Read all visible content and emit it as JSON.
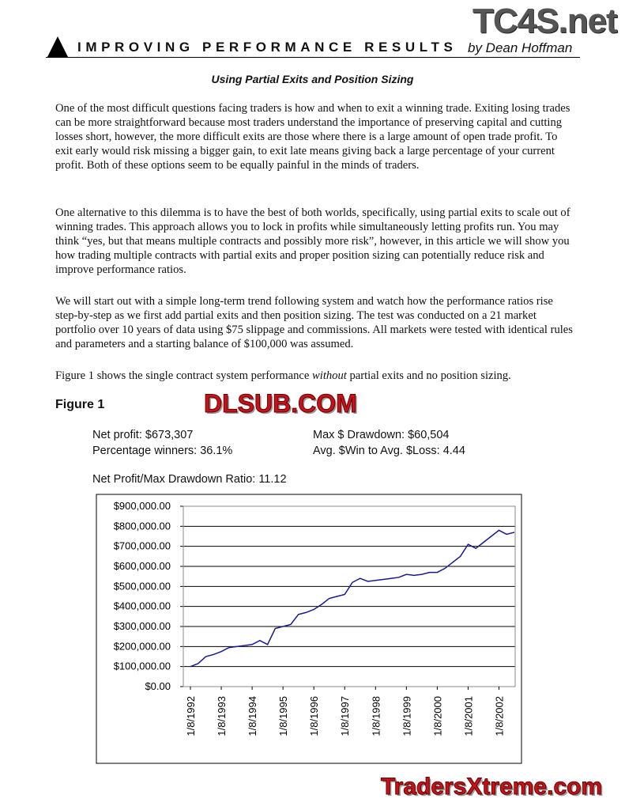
{
  "header": {
    "title": "IMPROVING PERFORMANCE RESULTS",
    "byline": "by Dean Hoffman",
    "logo": "TC4S.net"
  },
  "article": {
    "subtitle": "Using Partial Exits and Position Sizing",
    "paragraphs": [
      [
        "One of the most difficult questions facing traders is how and when to exit a winning trade. Exiting losing trades can be more straightforward because most traders understand the importance of preserving capital and cutting losses short, however, the more difficult exits are those where there is a large amount of open trade profit. To exit early would risk missing a bigger gain, to exit late means giving back a large percentage of your current profit. Both of these options seem to be equally painful in the minds of traders."
      ],
      [
        "One alternative to this dilemma is to have the best of both worlds, specifically, using partial exits to scale out of winning trades. This approach allows you to lock in profits while simultaneously letting profits run. You may think “yes, but that means multiple contracts and possibly more risk”, however, in this article we will show you how trading multiple contracts with partial exits and proper position sizing can potentially reduce risk and improve performance ratios."
      ],
      [
        "We will start out with a simple long-term trend following system and watch how the performance ratios rise step-by-step as we first add partial exits and then position sizing. The test was conducted on a 21 market portfolio over 10 years of data using $75 slippage and commissions. All markets were tested with identical rules and parameters and a starting balance of $100,000 was assumed."
      ],
      [
        "Figure 1 shows the single contract system performance ",
        "without",
        " partial exits and no position sizing."
      ]
    ]
  },
  "figure": {
    "title": "Figure 1",
    "stats": [
      "Net profit: $673,307",
      "Max $ Drawdown: $60,504",
      "Percentage winners: 36.1%",
      "Avg. $Win to Avg. $Loss: 4.44"
    ],
    "ratio": "Net Profit/Max Drawdown Ratio: 11.12"
  },
  "chart_data": {
    "type": "line",
    "categories": [
      "1/8/1992",
      null,
      null,
      null,
      "1/8/1993",
      null,
      null,
      null,
      "1/8/1994",
      null,
      null,
      null,
      "1/8/1995",
      null,
      null,
      null,
      "1/8/1996",
      null,
      null,
      null,
      "1/8/1997",
      null,
      null,
      null,
      "1/8/1998",
      null,
      null,
      null,
      "1/8/1999",
      null,
      null,
      null,
      "1/8/2000",
      null,
      null,
      null,
      "1/8/2001",
      null,
      null,
      null,
      "1/8/2002",
      null,
      null
    ],
    "series": [
      {
        "color": "#1a1a8c",
        "values": [
          100000,
          115000,
          150000,
          160000,
          175000,
          195000,
          200000,
          205000,
          210000,
          230000,
          210000,
          290000,
          300000,
          310000,
          360000,
          370000,
          385000,
          410000,
          440000,
          450000,
          460000,
          520000,
          540000,
          525000,
          530000,
          535000,
          540000,
          545000,
          560000,
          555000,
          560000,
          570000,
          570000,
          590000,
          620000,
          650000,
          710000,
          690000,
          720000,
          750000,
          780000,
          760000,
          770000
        ]
      }
    ],
    "ylim": [
      0,
      900000
    ],
    "yticks": [
      {
        "value": 0,
        "label": "$0.00"
      },
      {
        "value": 100000,
        "label": "$100,000.00"
      },
      {
        "value": 200000,
        "label": "$200,000.00"
      },
      {
        "value": 300000,
        "label": "$300,000.00"
      },
      {
        "value": 400000,
        "label": "$400,000.00"
      },
      {
        "value": 500000,
        "label": "$500,000.00"
      },
      {
        "value": 600000,
        "label": "$600,000.00"
      },
      {
        "value": 700000,
        "label": "$700,000.00"
      },
      {
        "value": 800000,
        "label": "$800,000.00"
      },
      {
        "value": 900000,
        "label": "$900,000.00"
      }
    ],
    "grid": true
  },
  "watermarks": [
    "DLSUB.COM",
    "TradersXtreme.com"
  ]
}
